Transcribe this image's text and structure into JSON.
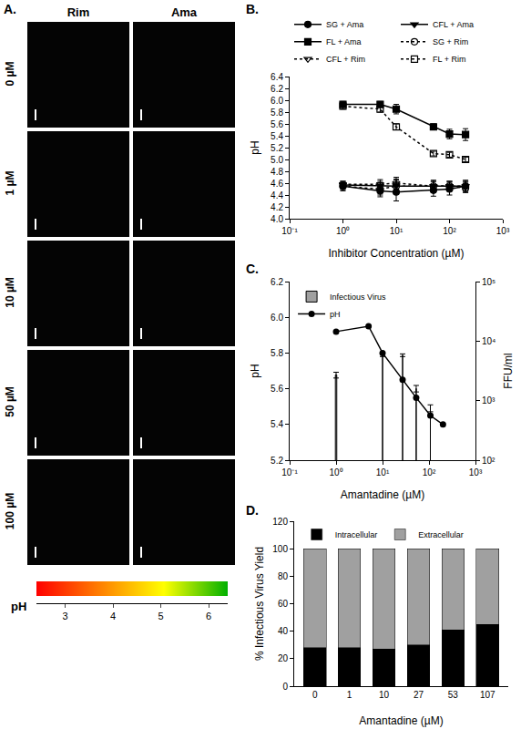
{
  "panel_a": {
    "panel_label": "A.",
    "columns": [
      "Rim",
      "Ama"
    ],
    "rows": [
      "0 µM",
      "1 µM",
      "10 µM",
      "50 µM",
      "100 µM"
    ],
    "colorbar": {
      "title": "pH",
      "range": [
        2.4,
        6.4
      ],
      "ticks": [
        3,
        4,
        5,
        6
      ],
      "colors": [
        "#ff0000",
        "#ff8000",
        "#ffff00",
        "#00b000"
      ]
    }
  },
  "chart_data": [
    {
      "type": "line",
      "panel_label": "B.",
      "x_label": "Inhibitor Concentration (µM)",
      "y_label": "pH",
      "log": "x",
      "grid": false,
      "legend": "top right",
      "xlim": [
        0.1,
        1000
      ],
      "xticks": [
        {
          "value": 0.1,
          "label": "10⁻¹"
        },
        {
          "value": 1,
          "label": "10⁰"
        },
        {
          "value": 10,
          "label": "10¹"
        },
        {
          "value": 100,
          "label": "10²"
        },
        {
          "value": 1000,
          "label": "10³"
        }
      ],
      "ylim": [
        4.0,
        6.4
      ],
      "yticks": [
        {
          "value": 4,
          "label": "4.0"
        },
        4.2,
        4.4,
        4.6,
        4.8,
        {
          "value": 5,
          "label": "5.0"
        },
        5.2,
        5.4,
        5.6,
        5.8,
        {
          "value": 6,
          "label": "6.0"
        },
        6.2,
        6.4
      ],
      "x": [
        1,
        5,
        10,
        50,
        100,
        200
      ],
      "series": [
        {
          "name": "SG + Ama",
          "color": "#000000",
          "marker": "circle",
          "line_style": "solid",
          "values": [
            4.55,
            4.47,
            4.45,
            4.48,
            4.5,
            4.55
          ],
          "errors": [
            0.08,
            0.1,
            0.15,
            0.1,
            0.1,
            0.1
          ]
        },
        {
          "name": "CFL + Ama",
          "color": "#000000",
          "marker": "triangle-down",
          "line_style": "solid",
          "values": [
            4.57,
            4.55,
            4.55,
            4.55,
            4.55,
            4.55
          ],
          "errors": [
            0.06,
            0.08,
            0.1,
            0.08,
            0.08,
            0.08
          ]
        },
        {
          "name": "FL + Ama",
          "color": "#000000",
          "marker": "square",
          "line_style": "solid",
          "values": [
            5.93,
            5.93,
            5.85,
            5.55,
            5.43,
            5.42
          ],
          "errors": [
            0.05,
            0.05,
            0.08,
            0.05,
            0.08,
            0.1
          ]
        },
        {
          "name": "SG + Rim",
          "color": "#000000",
          "marker": "circle-open",
          "line_style": "dot",
          "values": [
            4.55,
            4.5,
            4.55,
            4.55,
            4.55,
            4.52
          ],
          "errors": [
            0.06,
            0.1,
            0.12,
            0.1,
            0.08,
            0.08
          ]
        },
        {
          "name": "CFL + Rim",
          "color": "#000000",
          "marker": "triangle-down-open",
          "line_style": "dot",
          "values": [
            4.58,
            4.58,
            4.6,
            4.55,
            4.55,
            4.55
          ],
          "errors": [
            0.05,
            0.08,
            0.1,
            0.08,
            0.08,
            0.08
          ]
        },
        {
          "name": "FL + Rim",
          "color": "#000000",
          "marker": "square-open",
          "line_style": "dot",
          "values": [
            5.9,
            5.85,
            5.55,
            5.1,
            5.08,
            5.0
          ],
          "errors": [
            0.05,
            0.05,
            0.05,
            0.04,
            0.04,
            0.04
          ]
        }
      ]
    },
    {
      "type": "combo",
      "panel_label": "C.",
      "x_label": "Amantadine (µM)",
      "y_label": "pH",
      "y2_label": "FFU/ml",
      "log": [
        "x",
        "y2"
      ],
      "grid": false,
      "legend": "top left",
      "xlim": [
        0.1,
        1000
      ],
      "xticks": [
        {
          "value": 0.1,
          "label": "10⁻¹"
        },
        {
          "value": 1,
          "label": "10⁰"
        },
        {
          "value": 10,
          "label": "10¹"
        },
        {
          "value": 100,
          "label": "10²"
        },
        {
          "value": 1000,
          "label": "10³"
        }
      ],
      "ylim": [
        5.2,
        6.2
      ],
      "yticks": [
        5.2,
        5.4,
        5.6,
        5.8,
        {
          "value": 6,
          "label": "6.0"
        },
        6.2
      ],
      "y2lim": [
        100,
        100000
      ],
      "y2ticks": [
        {
          "value": 100,
          "label": "10²"
        },
        {
          "value": 1000,
          "label": "10³"
        },
        {
          "value": 10000,
          "label": "10⁴"
        },
        {
          "value": 100000,
          "label": "10⁵"
        }
      ],
      "series": [
        {
          "name": "Infectious Virus",
          "type": "bar",
          "axis": "y2",
          "color": "#a0a0a0",
          "x": [
            1,
            10,
            27,
            53,
            107
          ],
          "values": [
            2700,
            6000,
            5800,
            1600,
            750
          ],
          "errors": [
            300,
            500,
            300,
            200,
            100
          ]
        },
        {
          "name": "pH",
          "type": "line",
          "color": "#000000",
          "marker": "circle",
          "line_style": "solid",
          "x": [
            1,
            5,
            10,
            27,
            53,
            107,
            200
          ],
          "values": [
            5.92,
            5.95,
            5.8,
            5.65,
            5.55,
            5.45,
            5.4
          ]
        }
      ]
    },
    {
      "type": "bar",
      "panel_label": "D.",
      "stacked": true,
      "grid": false,
      "legend": "top left",
      "x_label": "Amantadine (µM)",
      "y_label": "% Infectious Virus Yield",
      "categories": [
        "0",
        "1",
        "10",
        "27",
        "53",
        "107"
      ],
      "ylim": [
        0,
        120
      ],
      "yticks": [
        0,
        20,
        40,
        60,
        80,
        100,
        120
      ],
      "series": [
        {
          "name": "Intracellular",
          "color": "#000000",
          "values": [
            28,
            28,
            27,
            30,
            41,
            45
          ]
        },
        {
          "name": "Extracellular",
          "color": "#a0a0a0",
          "values": [
            72,
            72,
            73,
            70,
            59,
            55
          ]
        }
      ]
    }
  ]
}
